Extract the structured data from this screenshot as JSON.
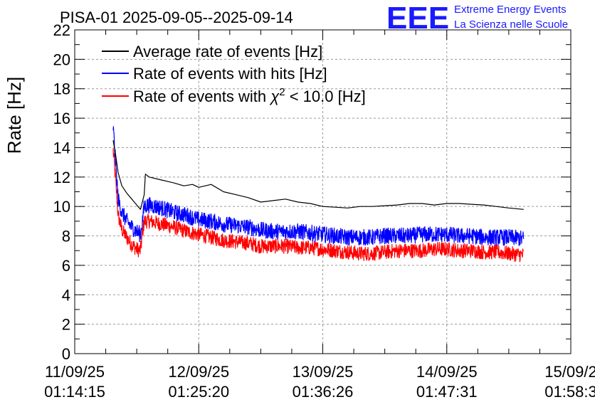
{
  "chart_data": {
    "type": "line",
    "title": "PISA-01 2025-09-05--2025-09-14",
    "ylabel": "Rate [Hz]",
    "xlabel": "",
    "ylim": [
      0,
      22
    ],
    "yticks": [
      0,
      2,
      4,
      6,
      8,
      10,
      12,
      14,
      16,
      18,
      20,
      22
    ],
    "xlim": [
      0,
      4
    ],
    "xticks": [
      {
        "pos": 0,
        "date": "11/09/25",
        "time": "01:14:15"
      },
      {
        "pos": 1,
        "date": "12/09/25",
        "time": "01:25:20"
      },
      {
        "pos": 2,
        "date": "13/09/25",
        "time": "01:36:26"
      },
      {
        "pos": 3,
        "date": "14/09/25",
        "time": "01:47:31"
      },
      {
        "pos": 4,
        "date": "15/09/2",
        "time": "01:58:3"
      }
    ],
    "grid": true,
    "legend_position": "top-left",
    "series": [
      {
        "name": "Average rate of events [Hz]",
        "color": "#000000",
        "noise": 0,
        "points": [
          [
            0.31,
            14.5
          ],
          [
            0.33,
            13.5
          ],
          [
            0.35,
            12.3
          ],
          [
            0.38,
            11.4
          ],
          [
            0.42,
            10.9
          ],
          [
            0.46,
            10.5
          ],
          [
            0.5,
            10.1
          ],
          [
            0.53,
            9.8
          ],
          [
            0.56,
            10.8
          ],
          [
            0.57,
            12.2
          ],
          [
            0.6,
            12.0
          ],
          [
            0.7,
            11.8
          ],
          [
            0.8,
            11.6
          ],
          [
            0.88,
            11.4
          ],
          [
            0.95,
            11.5
          ],
          [
            1.0,
            11.3
          ],
          [
            1.1,
            11.5
          ],
          [
            1.2,
            11.0
          ],
          [
            1.3,
            10.8
          ],
          [
            1.4,
            10.6
          ],
          [
            1.5,
            10.3
          ],
          [
            1.6,
            10.4
          ],
          [
            1.7,
            10.5
          ],
          [
            1.8,
            10.3
          ],
          [
            1.9,
            10.2
          ],
          [
            2.0,
            10.0
          ],
          [
            2.1,
            9.95
          ],
          [
            2.2,
            9.9
          ],
          [
            2.3,
            10.0
          ],
          [
            2.4,
            10.0
          ],
          [
            2.5,
            10.05
          ],
          [
            2.6,
            10.1
          ],
          [
            2.7,
            10.2
          ],
          [
            2.8,
            10.2
          ],
          [
            2.9,
            10.1
          ],
          [
            3.0,
            10.2
          ],
          [
            3.1,
            10.2
          ],
          [
            3.2,
            10.15
          ],
          [
            3.3,
            10.1
          ],
          [
            3.4,
            10.0
          ],
          [
            3.5,
            9.9
          ],
          [
            3.62,
            9.8
          ]
        ]
      },
      {
        "name": "Rate of events with hits [Hz]",
        "color": "#0000ff",
        "noise": 0.55,
        "points": [
          [
            0.31,
            15.4
          ],
          [
            0.33,
            13.0
          ],
          [
            0.35,
            10.5
          ],
          [
            0.38,
            9.6
          ],
          [
            0.42,
            9.0
          ],
          [
            0.46,
            8.6
          ],
          [
            0.5,
            8.3
          ],
          [
            0.53,
            8.1
          ],
          [
            0.55,
            9.3
          ],
          [
            0.56,
            10.0
          ],
          [
            0.6,
            10.1
          ],
          [
            0.7,
            9.9
          ],
          [
            0.8,
            9.6
          ],
          [
            0.9,
            9.4
          ],
          [
            1.0,
            9.1
          ],
          [
            1.1,
            9.0
          ],
          [
            1.2,
            8.8
          ],
          [
            1.3,
            8.7
          ],
          [
            1.4,
            8.6
          ],
          [
            1.5,
            8.4
          ],
          [
            1.6,
            8.3
          ],
          [
            1.7,
            8.3
          ],
          [
            1.8,
            8.3
          ],
          [
            1.9,
            8.2
          ],
          [
            2.0,
            8.1
          ],
          [
            2.1,
            8.0
          ],
          [
            2.2,
            7.9
          ],
          [
            2.3,
            7.9
          ],
          [
            2.4,
            7.9
          ],
          [
            2.5,
            8.0
          ],
          [
            2.6,
            8.0
          ],
          [
            2.7,
            8.0
          ],
          [
            2.8,
            8.1
          ],
          [
            2.9,
            8.1
          ],
          [
            3.0,
            8.1
          ],
          [
            3.1,
            8.0
          ],
          [
            3.2,
            8.0
          ],
          [
            3.3,
            7.9
          ],
          [
            3.4,
            7.9
          ],
          [
            3.5,
            7.9
          ],
          [
            3.62,
            7.8
          ]
        ]
      },
      {
        "name": "Rate of events with χ² < 10.0 [Hz]",
        "color": "#ff0000",
        "noise": 0.5,
        "points": [
          [
            0.31,
            13.8
          ],
          [
            0.33,
            11.8
          ],
          [
            0.35,
            9.4
          ],
          [
            0.38,
            8.4
          ],
          [
            0.42,
            7.9
          ],
          [
            0.46,
            7.4
          ],
          [
            0.5,
            7.1
          ],
          [
            0.53,
            7.0
          ],
          [
            0.55,
            8.4
          ],
          [
            0.56,
            9.0
          ],
          [
            0.6,
            9.0
          ],
          [
            0.7,
            8.8
          ],
          [
            0.8,
            8.6
          ],
          [
            0.9,
            8.3
          ],
          [
            1.0,
            8.1
          ],
          [
            1.1,
            7.9
          ],
          [
            1.2,
            7.7
          ],
          [
            1.3,
            7.6
          ],
          [
            1.4,
            7.5
          ],
          [
            1.5,
            7.3
          ],
          [
            1.6,
            7.3
          ],
          [
            1.7,
            7.3
          ],
          [
            1.8,
            7.2
          ],
          [
            1.9,
            7.2
          ],
          [
            2.0,
            7.1
          ],
          [
            2.1,
            7.0
          ],
          [
            2.2,
            6.9
          ],
          [
            2.3,
            6.8
          ],
          [
            2.4,
            6.8
          ],
          [
            2.5,
            6.9
          ],
          [
            2.6,
            7.0
          ],
          [
            2.7,
            7.0
          ],
          [
            2.8,
            7.0
          ],
          [
            2.9,
            7.1
          ],
          [
            3.0,
            7.1
          ],
          [
            3.1,
            7.0
          ],
          [
            3.2,
            7.0
          ],
          [
            3.3,
            6.9
          ],
          [
            3.4,
            6.9
          ],
          [
            3.5,
            6.8
          ],
          [
            3.62,
            6.7
          ]
        ]
      }
    ]
  },
  "logo": {
    "mark": "EEE",
    "line1": "Extreme Energy Events",
    "line2": "La Scienza nelle Scuole",
    "color": "#1a1aff"
  },
  "legend": {
    "items": [
      {
        "text": "Average rate of events [Hz]",
        "color": "#000000"
      },
      {
        "text": "Rate of events with hits [Hz]",
        "color": "#0000ff"
      },
      {
        "text_pre": "Rate of events with ",
        "chi": "χ",
        "sup": "2",
        "text_post": " < 10.0 [Hz]",
        "color": "#ff0000"
      }
    ]
  }
}
